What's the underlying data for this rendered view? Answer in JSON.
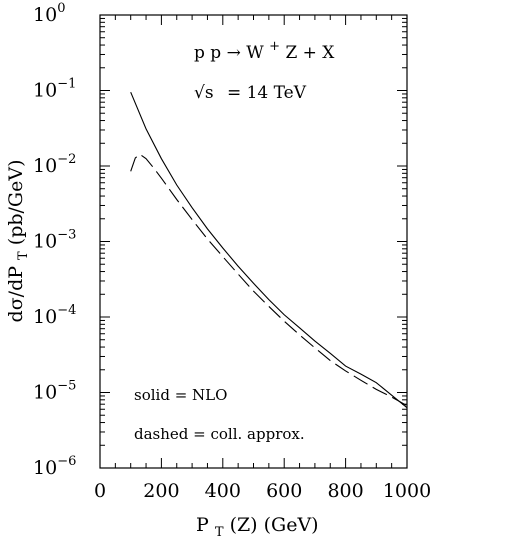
{
  "chart_data": {
    "type": "line",
    "xlabel": "P_T(Z)  (GeV)",
    "xlabel_main": "P",
    "xlabel_sub": "T",
    "xlabel_rest": "(Z)  (GeV)",
    "ylabel": "dσ/dP_T (pb/GeV)",
    "ylabel_main": "dσ/dP",
    "ylabel_sub": "T",
    "ylabel_rest": " (pb/GeV)",
    "xlim": [
      0,
      1000
    ],
    "ylim": [
      1e-06,
      1
    ],
    "yscale": "log",
    "x_ticks": [
      "0",
      "200",
      "400",
      "600",
      "800",
      "1000"
    ],
    "x_tick_values": [
      0,
      200,
      400,
      600,
      800,
      1000
    ],
    "y_ticks": [
      {
        "base": "10",
        "exp": "0",
        "value": 1
      },
      {
        "base": "10",
        "exp": "−1",
        "value": 0.1
      },
      {
        "base": "10",
        "exp": "−2",
        "value": 0.01
      },
      {
        "base": "10",
        "exp": "−3",
        "value": 0.001
      },
      {
        "base": "10",
        "exp": "−4",
        "value": 0.0001
      },
      {
        "base": "10",
        "exp": "−5",
        "value": 1e-05
      },
      {
        "base": "10",
        "exp": "−6",
        "value": 1e-06
      }
    ],
    "annotations": {
      "process_pp": "p p",
      "process_arrow": "→",
      "process_W": "W",
      "process_sup": "+",
      "process_rest": "Z + X",
      "energy_sqrt": "√s",
      "energy_rest": "= 14 TeV",
      "solid_label": "solid = NLO",
      "dashed_label": "dashed = coll. approx."
    },
    "series": [
      {
        "name": "NLO",
        "style": "solid",
        "x": [
          100,
          150,
          200,
          250,
          300,
          350,
          400,
          450,
          500,
          550,
          600,
          650,
          700,
          750,
          800,
          850,
          900,
          950,
          1000
        ],
        "y": [
          0.095,
          0.031,
          0.0125,
          0.0056,
          0.0028,
          0.00147,
          0.00082,
          0.00047,
          0.00028,
          0.00017,
          0.000107,
          7.2e-05,
          4.8e-05,
          3.3e-05,
          2.24e-05,
          1.75e-05,
          1.35e-05,
          9.2e-06,
          6.3e-06
        ]
      },
      {
        "name": "coll. approx.",
        "style": "dashed",
        "x": [
          100,
          115,
          130,
          150,
          175,
          200,
          250,
          300,
          350,
          400,
          450,
          500,
          550,
          600,
          650,
          700,
          750,
          800,
          850,
          900,
          950,
          1000
        ],
        "y": [
          0.0085,
          0.0128,
          0.0143,
          0.0125,
          0.0094,
          0.0069,
          0.0036,
          0.00195,
          0.00108,
          0.00063,
          0.00037,
          0.00022,
          0.000138,
          8.8e-05,
          5.8e-05,
          3.9e-05,
          2.65e-05,
          1.93e-05,
          1.45e-05,
          1.1e-05,
          8.7e-06,
          6.7e-06
        ]
      }
    ]
  }
}
